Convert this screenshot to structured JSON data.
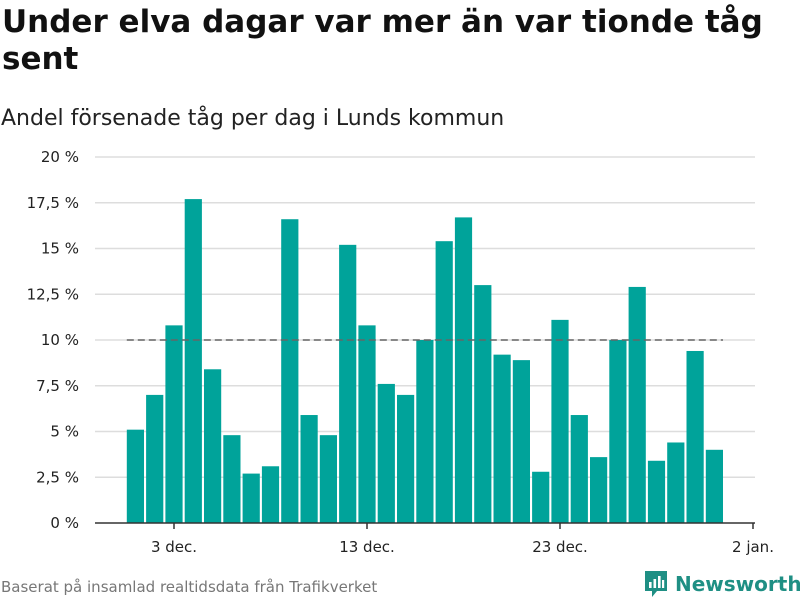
{
  "chart_data": {
    "type": "bar",
    "title": "Under elva dagar var mer än var tionde tåg sent",
    "subtitle": "Andel försenade tåg per dag i Lunds kommun",
    "x": [
      "2023-12-01",
      "2023-12-02",
      "2023-12-03",
      "2023-12-04",
      "2023-12-05",
      "2023-12-06",
      "2023-12-07",
      "2023-12-08",
      "2023-12-09",
      "2023-12-10",
      "2023-12-11",
      "2023-12-12",
      "2023-12-13",
      "2023-12-14",
      "2023-12-15",
      "2023-12-16",
      "2023-12-17",
      "2023-12-18",
      "2023-12-19",
      "2023-12-20",
      "2023-12-21",
      "2023-12-22",
      "2023-12-23",
      "2023-12-24",
      "2023-12-25",
      "2023-12-26",
      "2023-12-27",
      "2023-12-28",
      "2023-12-29",
      "2023-12-30",
      "2023-12-31"
    ],
    "values": [
      5.1,
      7.0,
      10.8,
      17.7,
      8.4,
      4.8,
      2.7,
      3.1,
      16.6,
      5.9,
      4.8,
      15.2,
      10.8,
      7.6,
      7.0,
      10.0,
      15.4,
      16.7,
      13.0,
      9.2,
      8.9,
      2.8,
      11.1,
      5.9,
      3.6,
      10.0,
      12.9,
      3.4,
      4.4,
      9.4,
      4.0
    ],
    "threshold": 10,
    "ylim": [
      0,
      20
    ],
    "yticks": [
      "0 %",
      "2,5 %",
      "5 %",
      "7,5 %",
      "10 %",
      "12,5 %",
      "15 %",
      "17,5 %",
      "20 %"
    ],
    "xticks": [
      {
        "date": "2023-12-03",
        "label": "3 dec."
      },
      {
        "date": "2023-12-13",
        "label": "13 dec."
      },
      {
        "date": "2023-12-23",
        "label": "23 dec."
      },
      {
        "date": "2024-01-02",
        "label": "2 jan."
      }
    ],
    "xlabel": "",
    "ylabel": "",
    "grid": true,
    "bar_color": "#00a39a",
    "threshold_color": "#666666"
  },
  "footer": {
    "source": "Baserat på insamlad realtidsdata från Trafikverket",
    "brand": "Newsworthy",
    "brand_color": "#1f8f84"
  }
}
